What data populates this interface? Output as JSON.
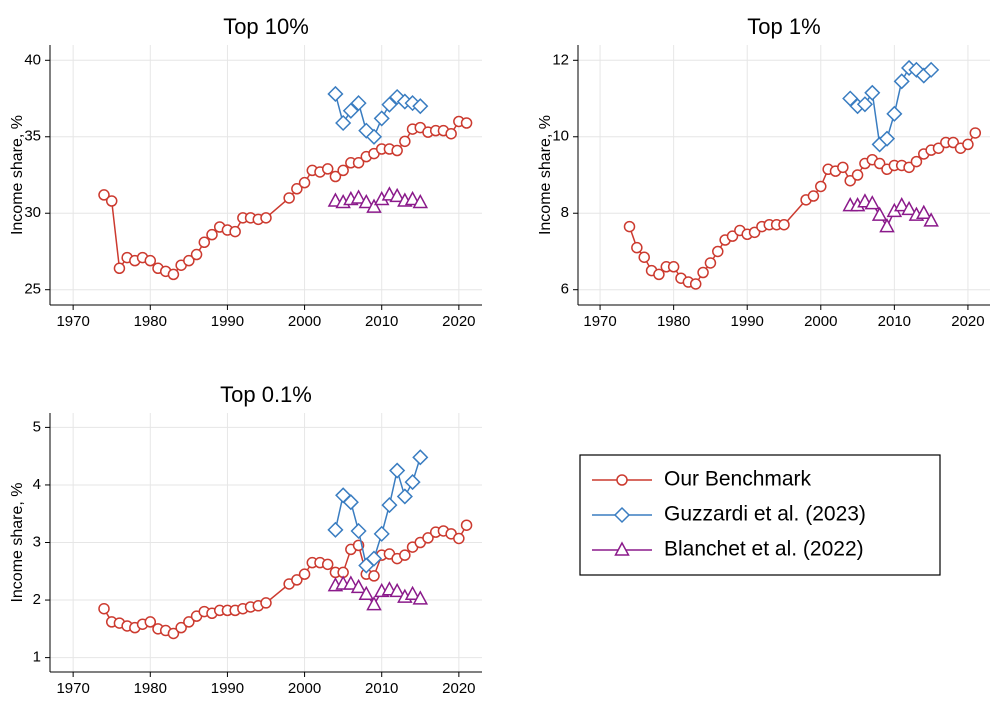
{
  "chart_data": [
    {
      "type": "line",
      "title": "Top 10%",
      "y_label": "Income share, %",
      "xlim": [
        1967,
        2023
      ],
      "xticks": [
        1970,
        1980,
        1990,
        2000,
        2010,
        2020
      ],
      "ylim": [
        24,
        41
      ],
      "yticks": [
        25,
        30,
        35,
        40
      ],
      "grid": true,
      "series": [
        {
          "name": "Our Benchmark",
          "color": "#cc3a2f",
          "marker": "circle",
          "x": [
            1974,
            1975,
            1976,
            1977,
            1978,
            1979,
            1980,
            1981,
            1982,
            1983,
            1984,
            1985,
            1986,
            1987,
            1988,
            1989,
            1990,
            1991,
            1992,
            1993,
            1994,
            1995,
            1998,
            1999,
            2000,
            2001,
            2002,
            2003,
            2004,
            2005,
            2006,
            2007,
            2008,
            2009,
            2010,
            2011,
            2012,
            2013,
            2014,
            2015,
            2016,
            2017,
            2018,
            2019,
            2020,
            2021
          ],
          "values": [
            31.2,
            30.8,
            26.4,
            27.1,
            26.9,
            27.1,
            26.9,
            26.4,
            26.2,
            26.0,
            26.6,
            26.9,
            27.3,
            28.1,
            28.6,
            29.1,
            28.9,
            28.8,
            29.7,
            29.7,
            29.6,
            29.7,
            31.0,
            31.6,
            32.0,
            32.8,
            32.7,
            32.9,
            32.4,
            32.8,
            33.3,
            33.3,
            33.7,
            33.9,
            34.2,
            34.2,
            34.1,
            34.7,
            35.5,
            35.6,
            35.3,
            35.4,
            35.4,
            35.2,
            36.0,
            35.9
          ]
        },
        {
          "name": "Guzzardi et al. (2023)",
          "color": "#3a7dc1",
          "marker": "diamond",
          "x": [
            2004,
            2005,
            2006,
            2007,
            2008,
            2009,
            2010,
            2011,
            2012,
            2013,
            2014,
            2015
          ],
          "values": [
            37.8,
            35.9,
            36.7,
            37.2,
            35.4,
            35.0,
            36.2,
            37.1,
            37.6,
            37.3,
            37.2,
            37.0
          ]
        },
        {
          "name": "Blanchet et al. (2022)",
          "color": "#8b1a8b",
          "marker": "triangle",
          "x": [
            2004,
            2005,
            2006,
            2007,
            2008,
            2009,
            2010,
            2011,
            2012,
            2013,
            2014,
            2015
          ],
          "values": [
            30.8,
            30.7,
            30.9,
            31.0,
            30.7,
            30.4,
            30.9,
            31.2,
            31.1,
            30.8,
            30.9,
            30.7
          ]
        }
      ]
    },
    {
      "type": "line",
      "title": "Top 1%",
      "y_label": "Income share, %",
      "xlim": [
        1967,
        2023
      ],
      "xticks": [
        1970,
        1980,
        1990,
        2000,
        2010,
        2020
      ],
      "ylim": [
        5.6,
        12.4
      ],
      "yticks": [
        6,
        8,
        10,
        12
      ],
      "grid": true,
      "series": [
        {
          "name": "Our Benchmark",
          "color": "#cc3a2f",
          "marker": "circle",
          "x": [
            1974,
            1975,
            1976,
            1977,
            1978,
            1979,
            1980,
            1981,
            1982,
            1983,
            1984,
            1985,
            1986,
            1987,
            1988,
            1989,
            1990,
            1991,
            1992,
            1993,
            1994,
            1995,
            1998,
            1999,
            2000,
            2001,
            2002,
            2003,
            2004,
            2005,
            2006,
            2007,
            2008,
            2009,
            2010,
            2011,
            2012,
            2013,
            2014,
            2015,
            2016,
            2017,
            2018,
            2019,
            2020,
            2021
          ],
          "values": [
            7.65,
            7.1,
            6.85,
            6.5,
            6.4,
            6.6,
            6.6,
            6.3,
            6.2,
            6.15,
            6.45,
            6.7,
            7.0,
            7.3,
            7.4,
            7.55,
            7.45,
            7.5,
            7.65,
            7.7,
            7.7,
            7.7,
            8.35,
            8.45,
            8.7,
            9.15,
            9.1,
            9.2,
            8.85,
            9.0,
            9.3,
            9.4,
            9.3,
            9.15,
            9.25,
            9.25,
            9.2,
            9.35,
            9.55,
            9.65,
            9.7,
            9.85,
            9.85,
            9.7,
            9.8,
            10.1
          ]
        },
        {
          "name": "Guzzardi et al. (2023)",
          "color": "#3a7dc1",
          "marker": "diamond",
          "x": [
            2004,
            2005,
            2006,
            2007,
            2008,
            2009,
            2010,
            2011,
            2012,
            2013,
            2014,
            2015
          ],
          "values": [
            11.0,
            10.8,
            10.85,
            11.15,
            9.8,
            9.95,
            10.6,
            11.45,
            11.8,
            11.75,
            11.6,
            11.75
          ]
        },
        {
          "name": "Blanchet et al. (2022)",
          "color": "#8b1a8b",
          "marker": "triangle",
          "x": [
            2004,
            2005,
            2006,
            2007,
            2008,
            2009,
            2010,
            2011,
            2012,
            2013,
            2014,
            2015
          ],
          "values": [
            8.2,
            8.2,
            8.3,
            8.25,
            7.95,
            7.65,
            8.05,
            8.2,
            8.1,
            7.95,
            8.0,
            7.8
          ]
        }
      ]
    },
    {
      "type": "line",
      "title": "Top 0.1%",
      "y_label": "Income share, %",
      "xlim": [
        1967,
        2023
      ],
      "xticks": [
        1970,
        1980,
        1990,
        2000,
        2010,
        2020
      ],
      "ylim": [
        0.75,
        5.25
      ],
      "yticks": [
        1,
        2,
        3,
        4,
        5
      ],
      "grid": true,
      "series": [
        {
          "name": "Our Benchmark",
          "color": "#cc3a2f",
          "marker": "circle",
          "x": [
            1974,
            1975,
            1976,
            1977,
            1978,
            1979,
            1980,
            1981,
            1982,
            1983,
            1984,
            1985,
            1986,
            1987,
            1988,
            1989,
            1990,
            1991,
            1992,
            1993,
            1994,
            1995,
            1998,
            1999,
            2000,
            2001,
            2002,
            2003,
            2004,
            2005,
            2006,
            2007,
            2008,
            2009,
            2010,
            2011,
            2012,
            2013,
            2014,
            2015,
            2016,
            2017,
            2018,
            2019,
            2020,
            2021
          ],
          "values": [
            1.85,
            1.62,
            1.6,
            1.55,
            1.52,
            1.58,
            1.62,
            1.5,
            1.47,
            1.42,
            1.52,
            1.62,
            1.72,
            1.8,
            1.77,
            1.82,
            1.82,
            1.82,
            1.85,
            1.88,
            1.9,
            1.95,
            2.28,
            2.35,
            2.45,
            2.65,
            2.65,
            2.62,
            2.48,
            2.48,
            2.88,
            2.95,
            2.45,
            2.42,
            2.78,
            2.8,
            2.72,
            2.78,
            2.92,
            3.0,
            3.08,
            3.18,
            3.2,
            3.15,
            3.07,
            3.3
          ]
        },
        {
          "name": "Guzzardi et al. (2023)",
          "color": "#3a7dc1",
          "marker": "diamond",
          "x": [
            2004,
            2005,
            2006,
            2007,
            2008,
            2009,
            2010,
            2011,
            2012,
            2013,
            2014,
            2015
          ],
          "values": [
            3.22,
            3.82,
            3.7,
            3.2,
            2.6,
            2.72,
            3.15,
            3.65,
            4.25,
            3.8,
            4.05,
            4.48
          ]
        },
        {
          "name": "Blanchet et al. (2022)",
          "color": "#8b1a8b",
          "marker": "triangle",
          "x": [
            2004,
            2005,
            2006,
            2007,
            2008,
            2009,
            2010,
            2011,
            2012,
            2013,
            2014,
            2015
          ],
          "values": [
            2.25,
            2.28,
            2.28,
            2.22,
            2.1,
            1.92,
            2.15,
            2.18,
            2.15,
            2.05,
            2.1,
            2.02
          ]
        }
      ]
    }
  ]
}
